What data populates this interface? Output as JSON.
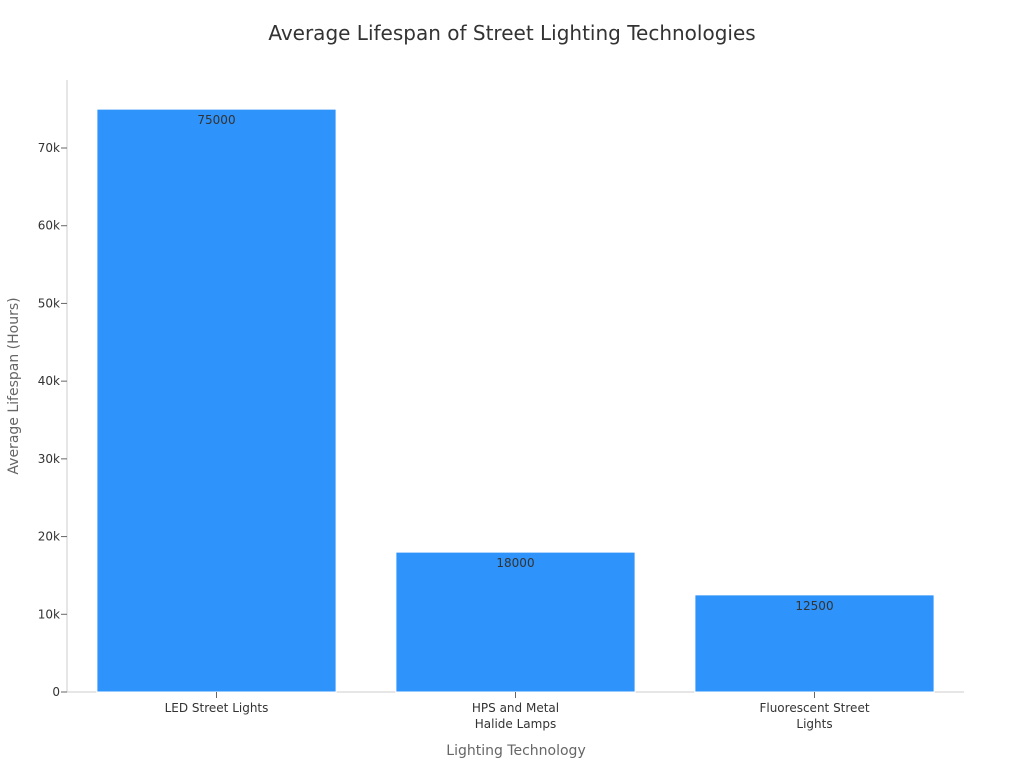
{
  "chart_data": {
    "type": "bar",
    "title": "Average Lifespan of Street Lighting Technologies",
    "xlabel": "Lighting Technology",
    "ylabel": "Average Lifespan (Hours)",
    "categories": [
      "LED Street Lights",
      "HPS and Metal Halide Lamps",
      "Fluorescent Street Lights"
    ],
    "category_label_lines": [
      [
        "LED Street Lights"
      ],
      [
        "HPS and Metal",
        "Halide Lamps"
      ],
      [
        "Fluorescent Street",
        "Lights"
      ]
    ],
    "values": [
      75000,
      18000,
      12500
    ],
    "data_labels": [
      "75000",
      "18000",
      "12500"
    ],
    "ylim": [
      0,
      78750
    ],
    "yticks": [
      0,
      10000,
      20000,
      30000,
      40000,
      50000,
      60000,
      70000
    ],
    "ytick_labels": [
      "0",
      "10k",
      "20k",
      "30k",
      "40k",
      "50k",
      "60k",
      "70k"
    ],
    "bar_color": "#2e93fa",
    "grid": false,
    "legend": "none"
  }
}
